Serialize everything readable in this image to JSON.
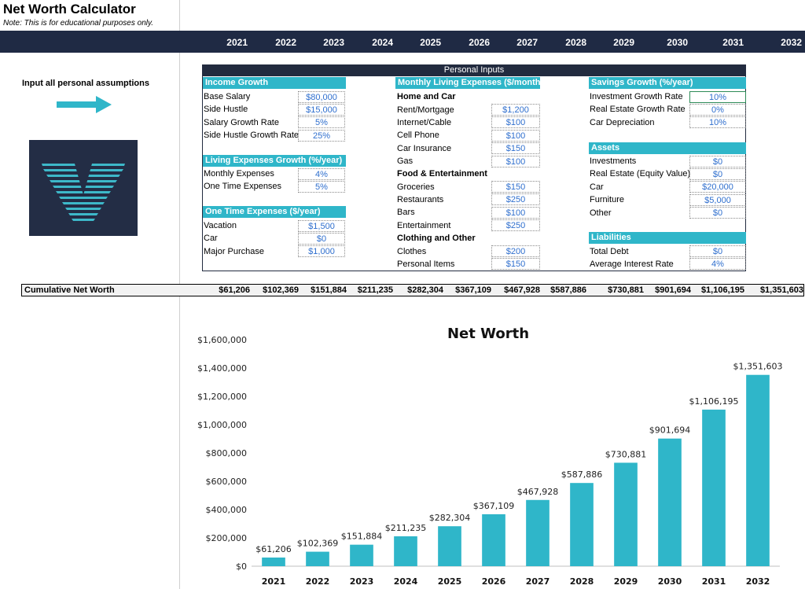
{
  "title": "Net Worth Calculator",
  "note": "Note: This is for educational purposes only.",
  "years": [
    "2021",
    "2022",
    "2023",
    "2024",
    "2025",
    "2026",
    "2027",
    "2028",
    "2029",
    "2030",
    "2031",
    "2032"
  ],
  "instruction": "Input all personal assumptions",
  "colors": {
    "accent": "#2fb6c9",
    "navy": "#1f2a44",
    "input_text": "#2f6fce"
  },
  "personal_inputs": {
    "header": "Personal Inputs",
    "income_growth": {
      "title": "Income Growth",
      "rows": [
        {
          "label": "Base Salary",
          "value": "$80,000"
        },
        {
          "label": "Side Hustle",
          "value": "$15,000"
        },
        {
          "label": "Salary Growth Rate",
          "value": "5%"
        },
        {
          "label": "Side Hustle Growth Rate",
          "value": "25%"
        }
      ]
    },
    "living_expenses_growth": {
      "title": "Living Expenses Growth (%/year)",
      "rows": [
        {
          "label": "Monthly Expenses",
          "value": "4%"
        },
        {
          "label": "One Time Expenses",
          "value": "5%"
        }
      ]
    },
    "one_time_expenses": {
      "title": "One Time Expenses ($/year)",
      "rows": [
        {
          "label": "Vacation",
          "value": "$1,500"
        },
        {
          "label": "Car",
          "value": "$0"
        },
        {
          "label": "Major Purchase",
          "value": "$1,000"
        }
      ]
    },
    "monthly_living": {
      "title": "Monthly Living Expenses ($/month)",
      "home_car_title": "Home and Car",
      "home_car": [
        {
          "label": "Rent/Mortgage",
          "value": "$1,200"
        },
        {
          "label": "Internet/Cable",
          "value": "$100"
        },
        {
          "label": "Cell Phone",
          "value": "$100"
        },
        {
          "label": "Car Insurance",
          "value": "$150"
        },
        {
          "label": "Gas",
          "value": "$100"
        }
      ],
      "food_title": "Food & Entertainment",
      "food": [
        {
          "label": "Groceries",
          "value": "$150"
        },
        {
          "label": "Restaurants",
          "value": "$250"
        },
        {
          "label": "Bars",
          "value": "$100"
        },
        {
          "label": "Entertainment",
          "value": "$250"
        }
      ],
      "clothing_title": "Clothing and Other",
      "clothing": [
        {
          "label": "Clothes",
          "value": "$200"
        },
        {
          "label": "Personal Items",
          "value": "$150"
        }
      ]
    },
    "savings_growth": {
      "title": "Savings Growth (%/year)",
      "rows": [
        {
          "label": "Investment Growth Rate",
          "value": "10%"
        },
        {
          "label": "Real Estate Growth Rate",
          "value": "0%"
        },
        {
          "label": "Car Depreciation",
          "value": "10%"
        }
      ]
    },
    "assets": {
      "title": "Assets",
      "rows": [
        {
          "label": "Investments",
          "value": "$0"
        },
        {
          "label": "Real Estate (Equity Value)",
          "value": "$0"
        },
        {
          "label": "Car",
          "value": "$20,000"
        },
        {
          "label": "Furniture",
          "value": "$5,000"
        },
        {
          "label": "Other",
          "value": "$0"
        }
      ]
    },
    "liabilities": {
      "title": "Liabilities",
      "rows": [
        {
          "label": "Total Debt",
          "value": "$0"
        },
        {
          "label": "Average Interest Rate",
          "value": "4%"
        }
      ]
    }
  },
  "cumulative": {
    "label": "Cumulative Net Worth",
    "values": [
      "$61,206",
      "$102,369",
      "$151,884",
      "$211,235",
      "$282,304",
      "$367,109",
      "$467,928",
      "$587,886",
      "$730,881",
      "$901,694",
      "$1,106,195",
      "$1,351,603"
    ]
  },
  "chart_data": {
    "type": "bar",
    "title": "Net Worth",
    "categories": [
      "2021",
      "2022",
      "2023",
      "2024",
      "2025",
      "2026",
      "2027",
      "2028",
      "2029",
      "2030",
      "2031",
      "2032"
    ],
    "values": [
      61206,
      102369,
      151884,
      211235,
      282304,
      367109,
      467928,
      587886,
      730881,
      901694,
      1106195,
      1351603
    ],
    "data_labels": [
      "$61,206",
      "$102,369",
      "$151,884",
      "$211,235",
      "$282,304",
      "$367,109",
      "$467,928",
      "$587,886",
      "$730,881",
      "$901,694",
      "$1,106,195",
      "$1,351,603"
    ],
    "ylim": [
      0,
      1600000
    ],
    "yticks": [
      0,
      200000,
      400000,
      600000,
      800000,
      1000000,
      1200000,
      1400000,
      1600000
    ],
    "ytick_labels": [
      "$0",
      "$200,000",
      "$400,000",
      "$600,000",
      "$800,000",
      "$1,000,000",
      "$1,200,000",
      "$1,400,000",
      "$1,600,000"
    ],
    "bar_color": "#2fb6c9",
    "grid": false,
    "xlabel": "",
    "ylabel": ""
  }
}
